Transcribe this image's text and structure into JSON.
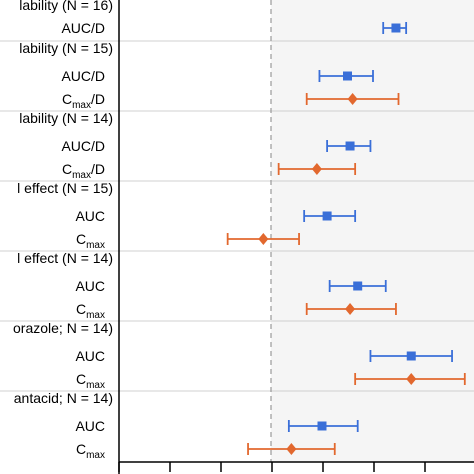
{
  "chart_data": {
    "type": "scatter",
    "subtype": "forest-plot",
    "x_axis": {
      "ylim_note": "no tick labels visible",
      "xlim": [
        -3,
        3.5
      ],
      "reference_line": 0,
      "reference_line_style": "dashed"
    },
    "shaded_region": {
      "from": 0,
      "to": 3.5,
      "color": "#f5f5f5"
    },
    "series": [
      {
        "marker": "square",
        "color": "#3a6fd8"
      },
      {
        "marker": "diamond",
        "color": "#e2682e"
      }
    ],
    "groups": [
      {
        "header": "lability (N = 16)",
        "rows": [
          {
            "label_main": "AUC/D",
            "label_sub": "",
            "label_tail": "",
            "series": 0,
            "estimate": 2.45,
            "lo": 2.2,
            "hi": 2.65
          }
        ]
      },
      {
        "header": "lability (N = 15)",
        "rows": [
          {
            "label_main": "AUC/D",
            "label_sub": "",
            "label_tail": "",
            "series": 0,
            "estimate": 1.5,
            "lo": 0.95,
            "hi": 2.0
          },
          {
            "label_main": "C",
            "label_sub": "max",
            "label_tail": "/D",
            "series": 1,
            "estimate": 1.6,
            "lo": 0.7,
            "hi": 2.5
          }
        ]
      },
      {
        "header": "lability (N = 14)",
        "rows": [
          {
            "label_main": "AUC/D",
            "label_sub": "",
            "label_tail": "",
            "series": 0,
            "estimate": 1.55,
            "lo": 1.1,
            "hi": 1.95
          },
          {
            "label_main": "C",
            "label_sub": "max",
            "label_tail": "/D",
            "series": 1,
            "estimate": 0.9,
            "lo": 0.15,
            "hi": 1.65
          }
        ]
      },
      {
        "header": "l effect (N = 15)",
        "rows": [
          {
            "label_main": "AUC",
            "label_sub": "",
            "label_tail": "",
            "series": 0,
            "estimate": 1.1,
            "lo": 0.65,
            "hi": 1.65
          },
          {
            "label_main": "C",
            "label_sub": "max",
            "label_tail": "",
            "series": 1,
            "estimate": -0.15,
            "lo": -0.85,
            "hi": 0.55
          }
        ]
      },
      {
        "header": "l effect (N = 14)",
        "rows": [
          {
            "label_main": "AUC",
            "label_sub": "",
            "label_tail": "",
            "series": 0,
            "estimate": 1.7,
            "lo": 1.15,
            "hi": 2.25
          },
          {
            "label_main": "C",
            "label_sub": "max",
            "label_tail": "",
            "series": 1,
            "estimate": 1.55,
            "lo": 0.7,
            "hi": 2.45
          }
        ]
      },
      {
        "header": "orazole; N = 14)",
        "rows": [
          {
            "label_main": "AUC",
            "label_sub": "",
            "label_tail": "",
            "series": 0,
            "estimate": 2.75,
            "lo": 1.95,
            "hi": 3.55
          },
          {
            "label_main": "C",
            "label_sub": "max",
            "label_tail": "",
            "series": 1,
            "estimate": 2.75,
            "lo": 1.65,
            "hi": 3.8
          }
        ]
      },
      {
        "header": "antacid; N = 14)",
        "rows": [
          {
            "label_main": "AUC",
            "label_sub": "",
            "label_tail": "",
            "series": 0,
            "estimate": 1.0,
            "lo": 0.35,
            "hi": 1.7
          },
          {
            "label_main": "C",
            "label_sub": "max",
            "label_tail": "",
            "series": 1,
            "estimate": 0.4,
            "lo": -0.45,
            "hi": 1.25
          }
        ]
      }
    ]
  }
}
